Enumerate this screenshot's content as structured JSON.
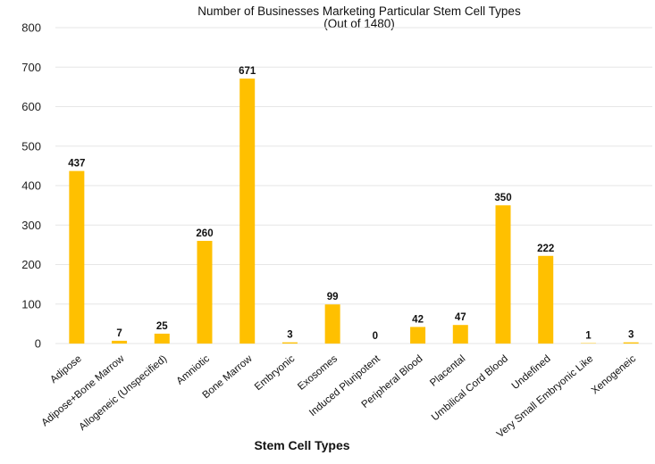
{
  "chart_data": {
    "type": "bar",
    "title": "Number of Businesses Marketing Particular Stem Cell Types",
    "subtitle": "(Out of 1480)",
    "xlabel": "Stem Cell Types",
    "ylabel": "",
    "ylim": [
      0,
      800
    ],
    "yticks": [
      "0",
      "100",
      "200",
      "300",
      "400",
      "500",
      "600",
      "700",
      "800"
    ],
    "grid": true,
    "bar_color": "#FFC000",
    "categories": [
      "Adipose",
      "Adipose+Bone Marrow",
      "Allogeneic (Unspecified)",
      "Amniotic",
      "Bone Marrow",
      "Embryonic",
      "Exosomes",
      "Induced Pluripotent",
      "Peripheral Blood",
      "Placental",
      "Umbilical Cord Blood",
      "Undefined",
      "Very Small Embryonic Like",
      "Xenogeneic"
    ],
    "values": [
      437,
      7,
      25,
      260,
      671,
      3,
      99,
      0,
      42,
      47,
      350,
      222,
      1,
      3
    ]
  }
}
